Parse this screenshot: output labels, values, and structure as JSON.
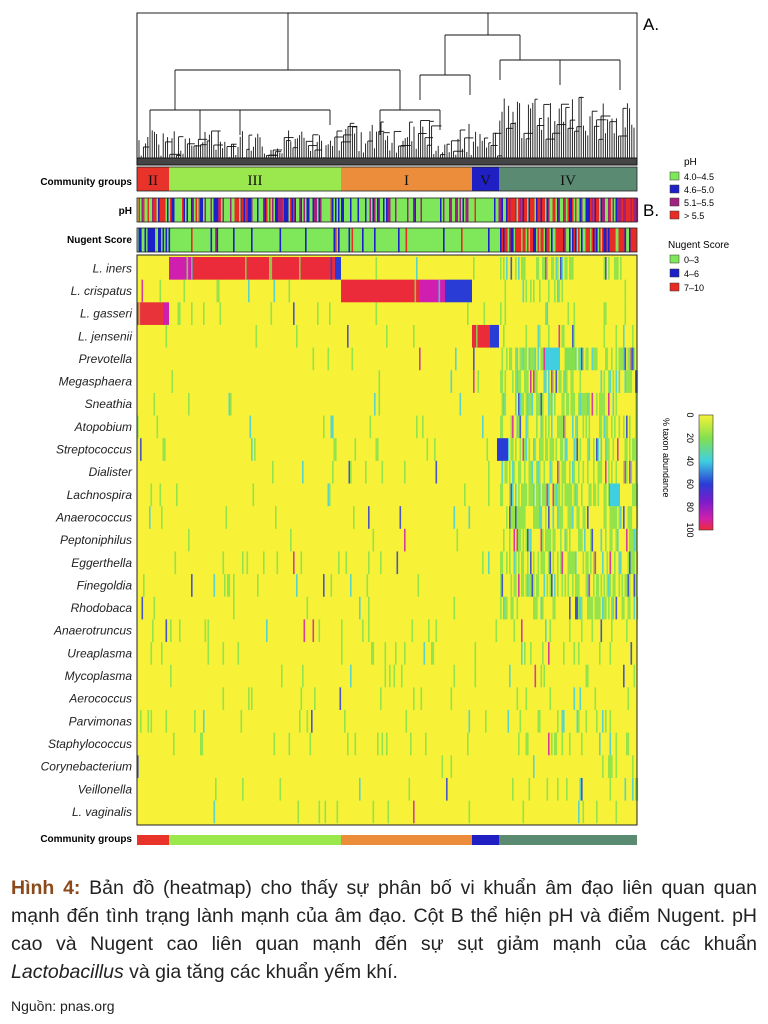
{
  "figure": {
    "panel_a": "A.",
    "panel_b": "B.",
    "row_labels": {
      "community_groups": "Community groups",
      "ph": "pH",
      "nugent": "Nugent Score",
      "community_groups_bottom": "Community groups"
    },
    "groups": [
      {
        "label": "II",
        "color": "#e8332a"
      },
      {
        "label": "III",
        "color": "#9be84e"
      },
      {
        "label": "I",
        "color": "#ec8d3c"
      },
      {
        "label": "V",
        "color": "#1f1fc4"
      },
      {
        "label": "IV",
        "color": "#5b8a72"
      }
    ],
    "taxa": [
      "L. iners",
      "L. crispatus",
      "L. gasseri",
      "L. jensenii",
      "Prevotella",
      "Megasphaera",
      "Sneathia",
      "Atopobium",
      "Streptococcus",
      "Dialister",
      "Lachnospira",
      "Anaerococcus",
      "Peptoniphilus",
      "Eggerthella",
      "Finegoldia",
      "Rhodobaca",
      "Anaerotruncus",
      "Ureaplasma",
      "Mycoplasma",
      "Aerococcus",
      "Parvimonas",
      "Staphylococcus",
      "Corynebacterium",
      "Veillonella",
      "L. vaginalis"
    ]
  },
  "legend": {
    "ph_title": "pH",
    "ph_items": [
      {
        "label": "4.0–4.5",
        "color": "#7fe85a"
      },
      {
        "label": "4.6–5.0",
        "color": "#1d1fc9"
      },
      {
        "label": "5.1–5.5",
        "color": "#a0227e"
      },
      {
        "label": "> 5.5",
        "color": "#e82c25"
      }
    ],
    "nugent_title": "Nugent Score",
    "nugent_items": [
      {
        "label": "0–3",
        "color": "#7fe85a"
      },
      {
        "label": "4–6",
        "color": "#1d1fc9"
      },
      {
        "label": "7–10",
        "color": "#e82c25"
      }
    ],
    "scale_title": "% taxon abundance",
    "scale_ticks": [
      "0",
      "20",
      "40",
      "60",
      "80",
      "100"
    ]
  },
  "caption": {
    "label": "Hình 4:",
    "text_1": " Bản đồ (heatmap) cho thấy sự phân bố vi khuẩn âm đạo liên quan quan mạnh đến tình trạng lành mạnh của âm đạo. Cột B thể hiện pH và điểm Nugent. pH cao và Nugent cao liên quan mạnh đến sự sụt giảm mạnh của các khuẩn ",
    "italic": "Lactobacillus",
    "text_2": " và gia tăng các khuẩn yếm khí."
  },
  "source": "Nguồn: pnas.org"
}
